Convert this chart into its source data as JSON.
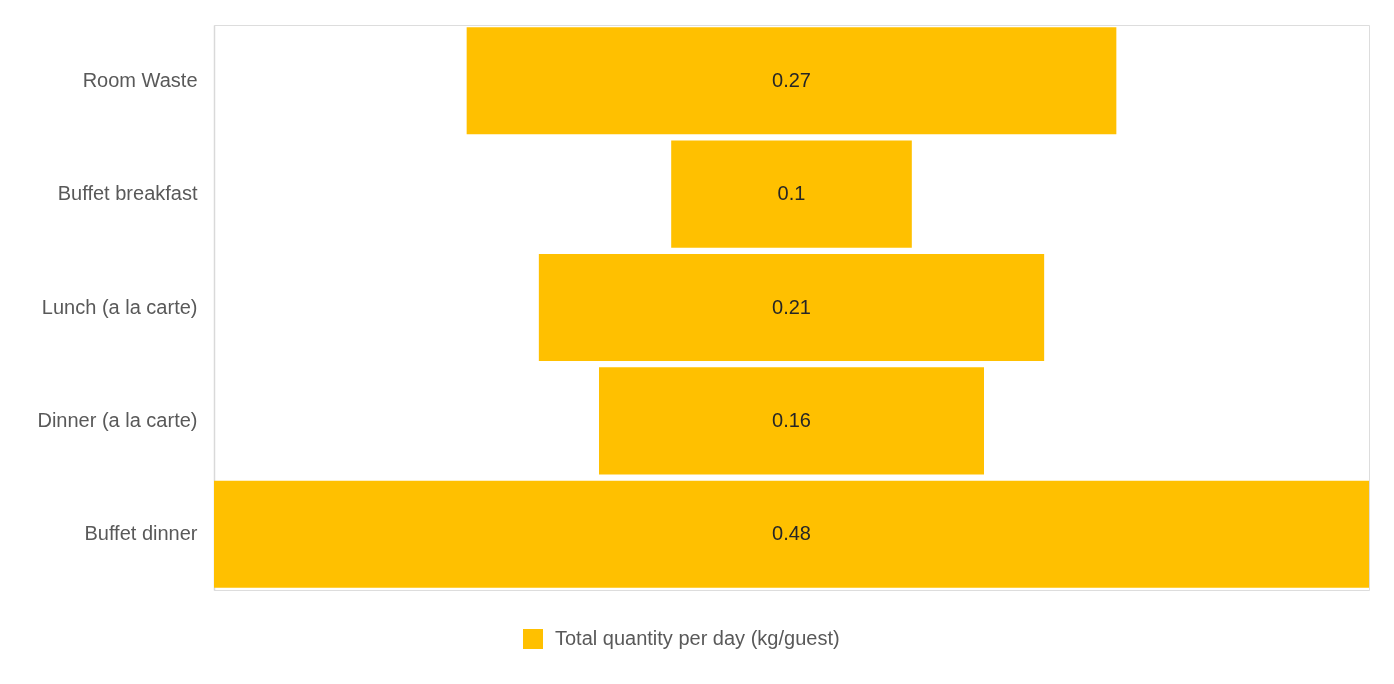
{
  "chart_data": {
    "type": "other",
    "categories": [
      "Room Waste",
      "Buffet breakfast",
      "Lunch (a la carte)",
      "Dinner (a la carte)",
      "Buffet dinner"
    ],
    "series": [
      {
        "name": "Total quantity per day (kg/guest)",
        "color": "#ffc000",
        "values": [
          0.27,
          0.1,
          0.21,
          0.16,
          0.48
        ]
      }
    ],
    "data_labels": true,
    "legend": "bottom"
  }
}
